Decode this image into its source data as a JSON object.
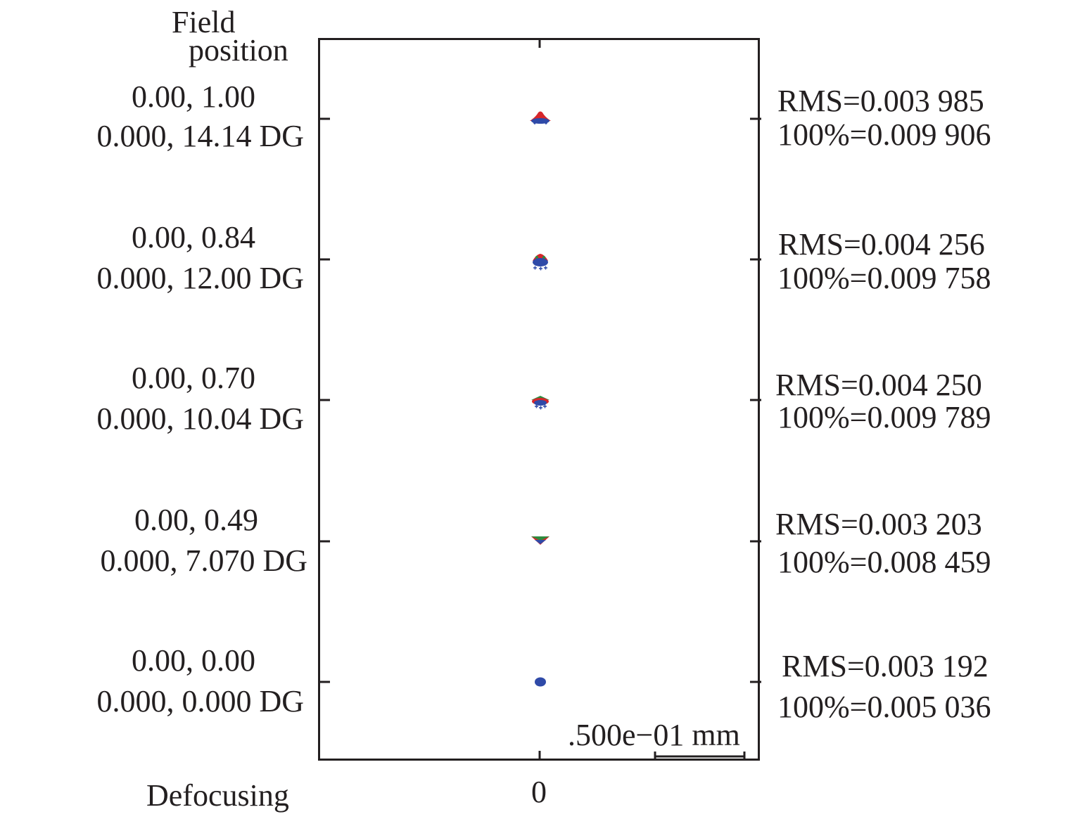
{
  "header": {
    "line1": "Field",
    "line2": "position"
  },
  "fields": [
    {
      "rel": "0.00, 1.00",
      "deg": "0.000, 14.14  DG",
      "rms": "RMS=0.003 985",
      "geo": "100%=0.009 906",
      "spot": "triangle"
    },
    {
      "rel": "0.00, 0.84",
      "deg": "0.000, 12.00  DG",
      "rms": "RMS=0.004 256",
      "geo": "100%=0.009 758",
      "spot": "mixed"
    },
    {
      "rel": "0.00, 0.70",
      "deg": "0.000, 10.04  DG",
      "rms": "RMS=0.004 250",
      "geo": "100%=0.009 789",
      "spot": "mixed"
    },
    {
      "rel": "0.00, 0.49",
      "deg": "0.000, 7.070  DG",
      "rms": "RMS=0.003 203",
      "geo": "100%=0.008 459",
      "spot": "inverted"
    },
    {
      "rel": "0.00, 0.00",
      "deg": "0.000, 0.000  DG",
      "rms": "RMS=0.003 192",
      "geo": "100%=0.005 036",
      "spot": "dot"
    }
  ],
  "scale_bar": {
    "label": ".500e−01 mm"
  },
  "footer": {
    "defocusing_label": "Defocusing",
    "defocus_value": "0"
  },
  "colors": {
    "axis": "#231f20",
    "red": "#d7262b",
    "green": "#2e8b3d",
    "blue": "#2f4aa8"
  }
}
